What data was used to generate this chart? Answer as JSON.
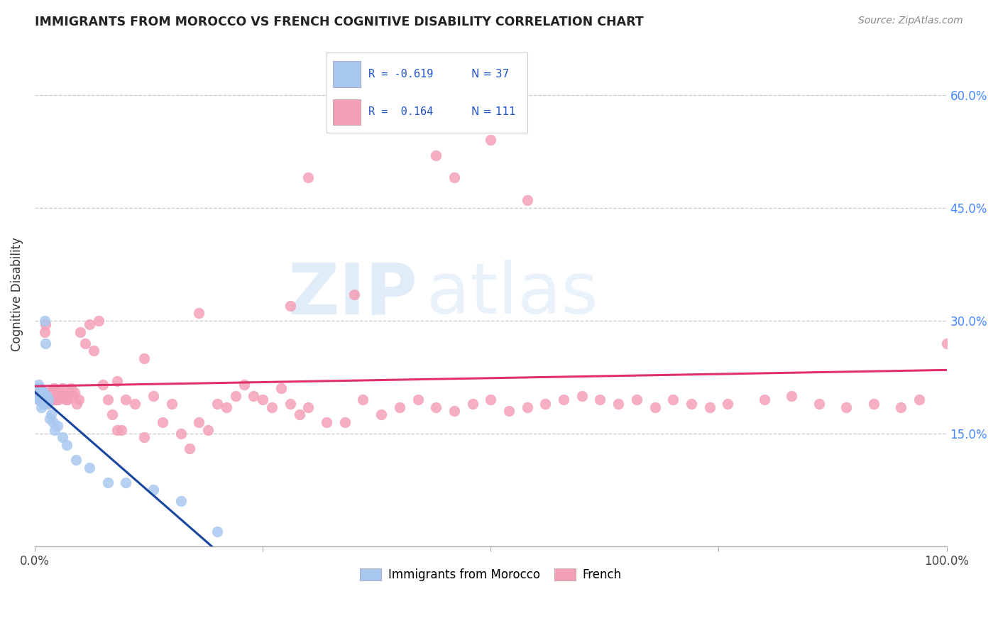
{
  "title": "IMMIGRANTS FROM MOROCCO VS FRENCH COGNITIVE DISABILITY CORRELATION CHART",
  "source": "Source: ZipAtlas.com",
  "ylabel": "Cognitive Disability",
  "xlim": [
    0.0,
    1.0
  ],
  "ylim": [
    0.0,
    0.67
  ],
  "yticks": [
    0.15,
    0.3,
    0.45,
    0.6
  ],
  "ytick_labels": [
    "15.0%",
    "30.0%",
    "45.0%",
    "60.0%"
  ],
  "xticks": [
    0.0,
    0.25,
    0.5,
    0.75,
    1.0
  ],
  "xtick_labels": [
    "0.0%",
    "",
    "",
    "",
    "100.0%"
  ],
  "legend_r1": "R = -0.619",
  "legend_n1": "N = 37",
  "legend_r2": "R =  0.164",
  "legend_n2": "N = 111",
  "color_blue": "#A8C8F0",
  "color_pink": "#F4A0B8",
  "color_trendline_blue": "#1845A0",
  "color_trendline_pink": "#E0306A",
  "color_legend_r": "#2255CC",
  "color_legend_n": "#2255CC",
  "watermark_zip": "ZIP",
  "watermark_atlas": "atlas",
  "blue_x": [
    0.002,
    0.003,
    0.003,
    0.004,
    0.004,
    0.005,
    0.005,
    0.005,
    0.006,
    0.006,
    0.007,
    0.007,
    0.008,
    0.008,
    0.009,
    0.009,
    0.01,
    0.01,
    0.011,
    0.012,
    0.013,
    0.014,
    0.015,
    0.016,
    0.018,
    0.02,
    0.022,
    0.025,
    0.03,
    0.035,
    0.045,
    0.06,
    0.08,
    0.1,
    0.13,
    0.16,
    0.2
  ],
  "blue_y": [
    0.205,
    0.2,
    0.21,
    0.195,
    0.215,
    0.2,
    0.205,
    0.195,
    0.2,
    0.21,
    0.205,
    0.185,
    0.2,
    0.195,
    0.19,
    0.205,
    0.2,
    0.195,
    0.3,
    0.27,
    0.2,
    0.19,
    0.195,
    0.17,
    0.175,
    0.165,
    0.155,
    0.16,
    0.145,
    0.135,
    0.115,
    0.105,
    0.085,
    0.085,
    0.075,
    0.06,
    0.02
  ],
  "pink_x": [
    0.002,
    0.003,
    0.004,
    0.005,
    0.005,
    0.005,
    0.006,
    0.007,
    0.007,
    0.008,
    0.009,
    0.01,
    0.01,
    0.011,
    0.012,
    0.013,
    0.014,
    0.015,
    0.015,
    0.016,
    0.017,
    0.018,
    0.019,
    0.02,
    0.02,
    0.021,
    0.022,
    0.023,
    0.024,
    0.025,
    0.025,
    0.026,
    0.027,
    0.028,
    0.03,
    0.032,
    0.034,
    0.036,
    0.038,
    0.04,
    0.042,
    0.044,
    0.046,
    0.048,
    0.05,
    0.055,
    0.06,
    0.065,
    0.07,
    0.075,
    0.08,
    0.085,
    0.09,
    0.095,
    0.1,
    0.11,
    0.12,
    0.13,
    0.14,
    0.15,
    0.16,
    0.17,
    0.18,
    0.19,
    0.2,
    0.21,
    0.22,
    0.23,
    0.24,
    0.25,
    0.26,
    0.27,
    0.28,
    0.29,
    0.3,
    0.32,
    0.34,
    0.36,
    0.38,
    0.4,
    0.42,
    0.44,
    0.46,
    0.48,
    0.5,
    0.52,
    0.54,
    0.56,
    0.58,
    0.6,
    0.62,
    0.64,
    0.66,
    0.68,
    0.7,
    0.72,
    0.74,
    0.76,
    0.8,
    0.83,
    0.86,
    0.89,
    0.92,
    0.95,
    0.97,
    1.0,
    0.35,
    0.28,
    0.18,
    0.12,
    0.09
  ],
  "pink_y": [
    0.21,
    0.205,
    0.195,
    0.2,
    0.205,
    0.21,
    0.195,
    0.2,
    0.205,
    0.195,
    0.2,
    0.205,
    0.195,
    0.285,
    0.295,
    0.2,
    0.19,
    0.195,
    0.205,
    0.2,
    0.195,
    0.205,
    0.195,
    0.2,
    0.205,
    0.21,
    0.195,
    0.2,
    0.195,
    0.205,
    0.2,
    0.195,
    0.2,
    0.205,
    0.21,
    0.2,
    0.195,
    0.195,
    0.205,
    0.21,
    0.2,
    0.205,
    0.19,
    0.195,
    0.285,
    0.27,
    0.295,
    0.26,
    0.3,
    0.215,
    0.195,
    0.175,
    0.22,
    0.155,
    0.195,
    0.19,
    0.25,
    0.2,
    0.165,
    0.19,
    0.15,
    0.13,
    0.165,
    0.155,
    0.19,
    0.185,
    0.2,
    0.215,
    0.2,
    0.195,
    0.185,
    0.21,
    0.19,
    0.175,
    0.185,
    0.165,
    0.165,
    0.195,
    0.175,
    0.185,
    0.195,
    0.185,
    0.18,
    0.19,
    0.195,
    0.18,
    0.185,
    0.19,
    0.195,
    0.2,
    0.195,
    0.19,
    0.195,
    0.185,
    0.195,
    0.19,
    0.185,
    0.19,
    0.195,
    0.2,
    0.19,
    0.185,
    0.19,
    0.185,
    0.195,
    0.27,
    0.335,
    0.32,
    0.31,
    0.145,
    0.155
  ],
  "pink_outliers_x": [
    0.3,
    0.33,
    0.44,
    0.46,
    0.5,
    0.54
  ],
  "pink_outliers_y": [
    0.49,
    0.57,
    0.52,
    0.49,
    0.54,
    0.46
  ]
}
